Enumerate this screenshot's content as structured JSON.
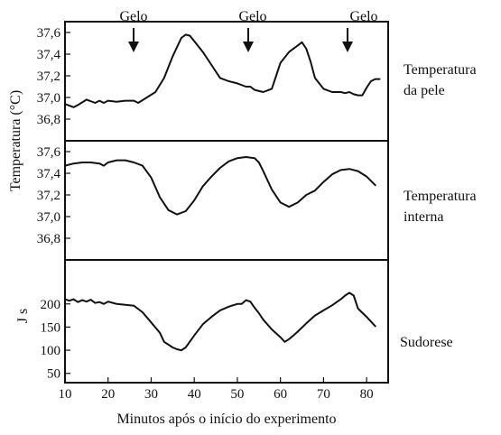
{
  "chart_data": {
    "type": "line",
    "xlabel": "Minutos após o início do experimento",
    "ylabel": "Temperatura (°C)",
    "xlim": [
      10,
      85
    ],
    "xticks": [
      10,
      20,
      30,
      40,
      50,
      60,
      70,
      80
    ],
    "markers": [
      {
        "label": "Gelo",
        "x": 26
      },
      {
        "label": "Gelo",
        "x": 53
      },
      {
        "label": "Gelo",
        "x": 76
      }
    ],
    "panels": [
      {
        "id": "pele",
        "label": [
          "Temperatura",
          "da pele"
        ],
        "ylim": [
          36.6,
          37.7
        ],
        "yticks": [
          "37,6",
          "37,4",
          "37,2",
          "37,0",
          "36,8"
        ],
        "ytick_values": [
          37.6,
          37.4,
          37.2,
          37.0,
          36.8
        ],
        "series": [
          {
            "x": [
              10,
              12,
              13,
              15,
              17,
              18,
              19,
              20,
              22,
              24,
              26,
              27,
              29,
              31,
              33,
              35,
              37,
              38,
              39,
              40,
              42,
              44,
              46,
              48,
              50,
              52,
              53,
              54,
              56,
              58,
              59,
              60,
              62,
              64,
              65,
              66,
              67,
              68,
              70,
              72,
              74,
              75,
              76,
              77,
              78,
              79,
              80,
              81,
              82,
              83
            ],
            "y": [
              36.94,
              36.91,
              36.93,
              36.98,
              36.95,
              36.97,
              36.95,
              36.97,
              36.96,
              36.97,
              36.97,
              36.95,
              37.0,
              37.05,
              37.18,
              37.38,
              37.55,
              37.58,
              37.57,
              37.52,
              37.42,
              37.3,
              37.18,
              37.15,
              37.13,
              37.1,
              37.1,
              37.07,
              37.05,
              37.08,
              37.2,
              37.32,
              37.42,
              37.48,
              37.51,
              37.45,
              37.33,
              37.18,
              37.08,
              37.05,
              37.05,
              37.04,
              37.05,
              37.03,
              37.02,
              37.02,
              37.09,
              37.15,
              37.17,
              37.17
            ]
          }
        ]
      },
      {
        "id": "interna",
        "label": [
          "Temperatura",
          "interna"
        ],
        "ylim": [
          36.6,
          37.7
        ],
        "yticks": [
          "37,6",
          "37,4",
          "37,2",
          "37,0",
          "36,8"
        ],
        "ytick_values": [
          37.6,
          37.4,
          37.2,
          37.0,
          36.8
        ],
        "series": [
          {
            "x": [
              10,
              12,
              14,
              16,
              18,
              19,
              20,
              22,
              24,
              26,
              28,
              30,
              32,
              34,
              36,
              38,
              40,
              42,
              44,
              46,
              48,
              50,
              52,
              54,
              55,
              56,
              58,
              60,
              62,
              64,
              66,
              68,
              70,
              72,
              74,
              76,
              78,
              80,
              82
            ],
            "y": [
              37.47,
              37.49,
              37.5,
              37.5,
              37.49,
              37.47,
              37.5,
              37.52,
              37.52,
              37.5,
              37.47,
              37.36,
              37.18,
              37.06,
              37.02,
              37.05,
              37.15,
              37.28,
              37.37,
              37.45,
              37.51,
              37.54,
              37.55,
              37.54,
              37.5,
              37.42,
              37.25,
              37.13,
              37.09,
              37.13,
              37.2,
              37.24,
              37.32,
              37.39,
              37.43,
              37.44,
              37.42,
              37.37,
              37.29
            ]
          }
        ]
      },
      {
        "id": "sudorese",
        "label": [
          "Sudorese"
        ],
        "ylim": [
          30,
          295
        ],
        "ylabel": "J s",
        "yticks": [
          "200",
          "150",
          "100",
          "50"
        ],
        "ytick_values": [
          200,
          150,
          100,
          50
        ],
        "series": [
          {
            "x": [
              10,
              11,
              12,
              13,
              14,
              15,
              16,
              17,
              18,
              19,
              20,
              22,
              24,
              26,
              28,
              30,
              32,
              33,
              34,
              35,
              36,
              37,
              38,
              40,
              42,
              44,
              46,
              48,
              50,
              51,
              52,
              53,
              54,
              55,
              56,
              58,
              60,
              61,
              62,
              63,
              64,
              66,
              68,
              70,
              72,
              74,
              75,
              76,
              77,
              78,
              80,
              82
            ],
            "y": [
              210,
              207,
              210,
              204,
              208,
              205,
              209,
              202,
              204,
              200,
              205,
              200,
              198,
              196,
              182,
              160,
              138,
              118,
              112,
              106,
              102,
              100,
              106,
              132,
              156,
              172,
              186,
              194,
              200,
              200,
              208,
              205,
              192,
              180,
              166,
              145,
              128,
              118,
              124,
              132,
              140,
              158,
              175,
              186,
              197,
              210,
              218,
              224,
              218,
              190,
              172,
              152
            ]
          }
        ]
      }
    ]
  }
}
